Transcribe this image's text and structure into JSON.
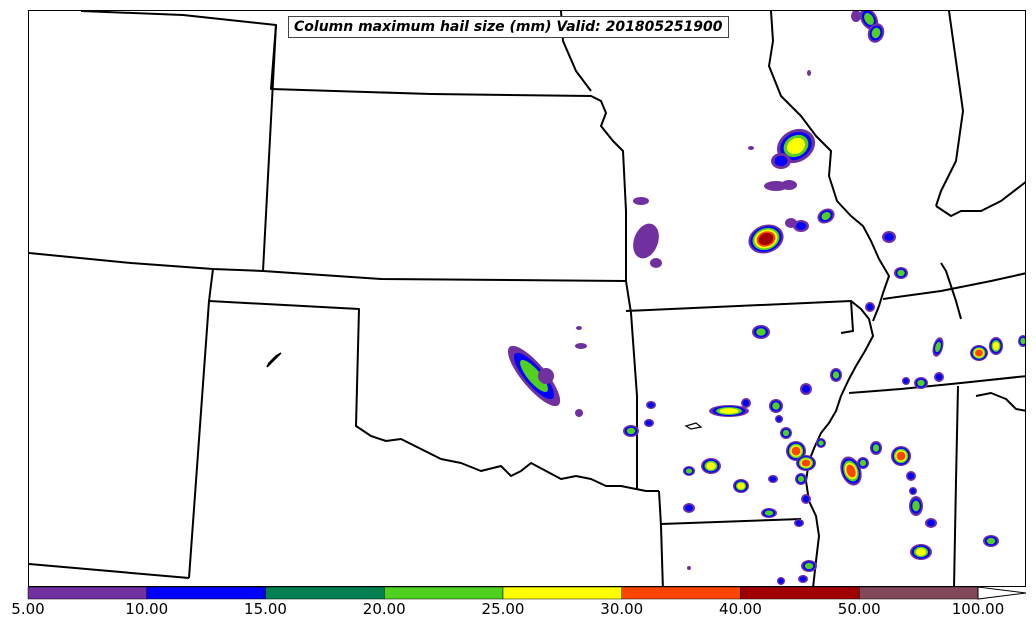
{
  "title": "Column maximum hail size (mm) Valid: 201805251900",
  "colorbar": {
    "colors": [
      "#7030a0",
      "#0000ff",
      "#008050",
      "#50d020",
      "#ffff00",
      "#ff4500",
      "#a00000",
      "#804858"
    ],
    "tick_labels": [
      "5.00",
      "10.00",
      "15.00",
      "20.00",
      "25.00",
      "30.00",
      "40.00",
      "50.00",
      "100.00"
    ],
    "extend": "max"
  },
  "map": {
    "region": "Central United States (Kansas, Missouri, Oklahoma, Arkansas, Illinois)",
    "state_border_color": "#000000",
    "background": "#ffffff"
  }
}
